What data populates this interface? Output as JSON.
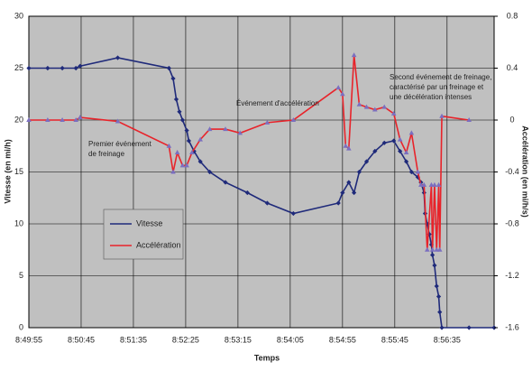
{
  "chart_data": {
    "type": "line",
    "xlabel": "Temps",
    "ylabel": "Vitesse (en mi/h)",
    "y2label": "Accélération (en mi/h/s)",
    "xlim": [
      "8:49:55",
      "8:57:20"
    ],
    "xticks": [
      "8:49:55",
      "8:50:45",
      "8:51:35",
      "8:52:25",
      "8:53:15",
      "8:54:05",
      "8:54:55",
      "8:55:45",
      "8:56:35"
    ],
    "ylim": [
      0,
      30
    ],
    "yticks": [
      0,
      5,
      10,
      15,
      20,
      25,
      30
    ],
    "y2lim": [
      -1.6,
      0.8
    ],
    "y2ticks": [
      -1.6,
      -1.2,
      -0.8,
      -0.4,
      0,
      0.4,
      0.8
    ],
    "grid": true,
    "annotations": [
      [
        "Premier événement",
        "de freinage"
      ],
      [
        "Événement d'accélération"
      ],
      [
        "Second événement de freinage,",
        "caractérisé par un freinage et",
        "une décélération intenses"
      ]
    ],
    "series": [
      {
        "name": "Vitesse",
        "color": "#1f2a7a",
        "marker": "diamond",
        "x": [
          "8:49:55",
          "8:50:13",
          "8:50:27",
          "8:50:40",
          "8:50:44",
          "8:51:20",
          "8:52:09",
          "8:52:13",
          "8:52:16",
          "8:52:19",
          "8:52:22",
          "8:52:26",
          "8:52:28",
          "8:52:33",
          "8:52:39",
          "8:52:48",
          "8:53:03",
          "8:53:24",
          "8:53:43",
          "8:54:08",
          "8:54:51",
          "8:54:55",
          "8:55:01",
          "8:55:06",
          "8:55:11",
          "8:55:18",
          "8:55:26",
          "8:55:35",
          "8:55:44",
          "8:55:50",
          "8:55:56",
          "8:56:01",
          "8:56:07",
          "8:56:10",
          "8:56:13",
          "8:56:14",
          "8:56:16",
          "8:56:18",
          "8:56:20",
          "8:56:21",
          "8:56:23",
          "8:56:25",
          "8:56:27",
          "8:56:28",
          "8:56:30",
          "8:56:56",
          "8:57:20"
        ],
        "values": [
          25,
          25,
          25,
          25,
          25.2,
          26,
          25,
          24,
          22,
          20.8,
          20,
          19,
          18,
          17,
          16,
          15,
          14,
          13,
          12,
          11,
          12,
          13,
          14,
          13,
          15,
          16,
          17,
          17.8,
          18,
          17,
          16,
          15,
          14.5,
          14,
          13,
          11,
          10,
          9,
          8,
          7,
          6,
          4,
          3,
          1.5,
          0,
          0,
          0
        ]
      },
      {
        "name": "Accélération",
        "color": "#e8232a",
        "marker": "triangle",
        "axis": "y2",
        "x": [
          "8:49:55",
          "8:50:13",
          "8:50:27",
          "8:50:40",
          "8:50:44",
          "8:51:20",
          "8:52:09",
          "8:52:13",
          "8:52:17",
          "8:52:22",
          "8:52:26",
          "8:52:31",
          "8:52:39",
          "8:52:48",
          "8:53:03",
          "8:53:17",
          "8:53:43",
          "8:54:08",
          "8:54:51",
          "8:54:55",
          "8:54:58",
          "8:55:01",
          "8:55:06",
          "8:55:11",
          "8:55:18",
          "8:55:26",
          "8:55:35",
          "8:55:44",
          "8:55:50",
          "8:55:56",
          "8:56:01",
          "8:56:07",
          "8:56:10",
          "8:56:13",
          "8:56:16",
          "8:56:20",
          "8:56:21",
          "8:56:23",
          "8:56:25",
          "8:56:27",
          "8:56:28",
          "8:56:30",
          "8:56:56"
        ],
        "values": [
          0,
          0,
          0,
          0,
          0.02,
          -0.01,
          -0.2,
          -0.4,
          -0.25,
          -0.35,
          -0.35,
          -0.25,
          -0.15,
          -0.07,
          -0.07,
          -0.1,
          -0.02,
          0,
          0.25,
          0.2,
          -0.2,
          -0.22,
          0.5,
          0.12,
          0.1,
          0.08,
          0.1,
          0.05,
          -0.15,
          -0.25,
          -0.1,
          -0.4,
          -0.5,
          -0.5,
          -1.0,
          -0.5,
          -1.0,
          -0.5,
          -1.0,
          -0.5,
          -1.0,
          0.03,
          0
        ]
      }
    ]
  }
}
